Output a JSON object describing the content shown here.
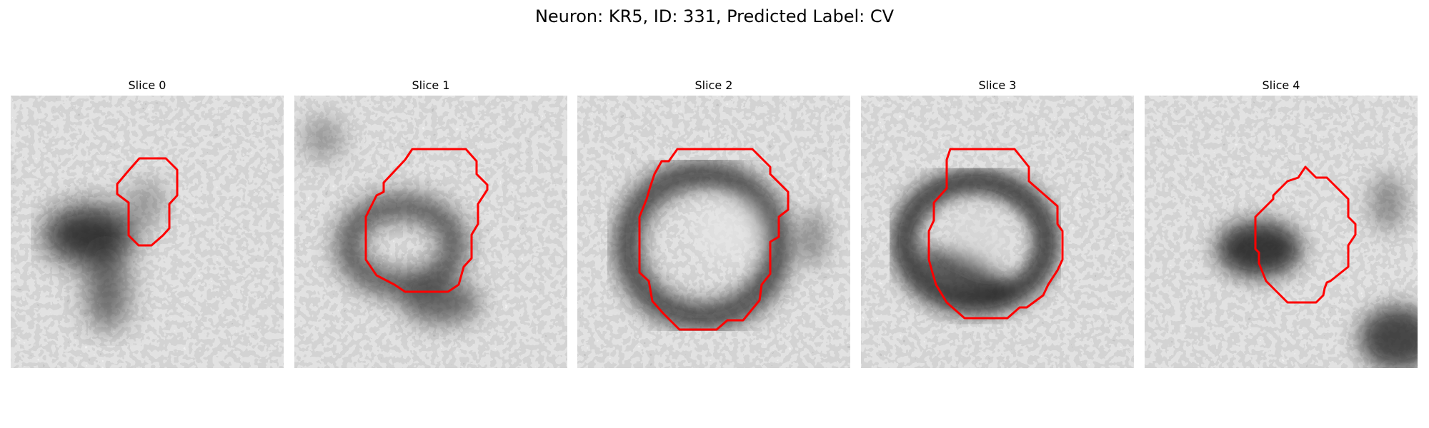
{
  "figure": {
    "title": "Neuron: KR5, ID: 331, Predicted Label: CV",
    "outline_color": "#ff0000"
  },
  "panels": [
    {
      "title": "Slice 0"
    },
    {
      "title": "Slice 1"
    },
    {
      "title": "Slice 2"
    },
    {
      "title": "Slice 3"
    },
    {
      "title": "Slice 4"
    }
  ]
}
